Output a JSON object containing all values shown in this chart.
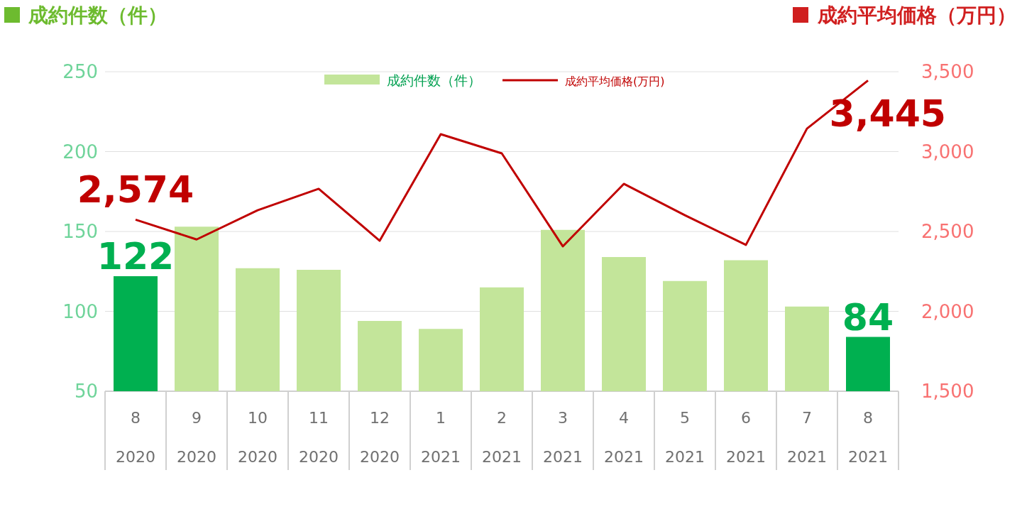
{
  "chart_data": {
    "type": "bar",
    "ylabel": "成約件数（件）",
    "y2label": "成約平均価格（万円）",
    "categories": [
      "8\n2020",
      "9\n2020",
      "10\n2020",
      "11\n2020",
      "12\n2020",
      "1\n2021",
      "2\n2021",
      "3\n2021",
      "4\n2021",
      "5\n2021",
      "6\n2021",
      "7\n2021",
      "8\n2021"
    ],
    "series": [
      {
        "name": "成約件数（件）",
        "color": "#c3e59a",
        "colors": [
          "#00b050",
          "#c3e59a",
          "#c3e59a",
          "#c3e59a",
          "#c3e59a",
          "#c3e59a",
          "#c3e59a",
          "#c3e59a",
          "#c3e59a",
          "#c3e59a",
          "#c3e59a",
          "#c3e59a",
          "#00b050"
        ],
        "values": [
          122,
          153,
          127,
          126,
          94,
          89,
          115,
          151,
          134,
          119,
          132,
          103,
          84
        ],
        "value_labels": [
          "122",
          null,
          null,
          null,
          null,
          null,
          null,
          null,
          null,
          null,
          null,
          null,
          "84"
        ]
      },
      {
        "name": "成約平均価格(万円)",
        "type": "line",
        "axis": "y2",
        "color": "#c00000",
        "values": [
          2574,
          2450,
          2633,
          2767,
          2442,
          3109,
          2989,
          2407,
          2798,
          2602,
          2416,
          3144,
          3445
        ],
        "value_labels": [
          "2,574",
          null,
          null,
          null,
          null,
          null,
          null,
          null,
          null,
          null,
          null,
          null,
          "3,445"
        ]
      }
    ],
    "ylim": [
      50,
      250
    ],
    "yticks": [
      50,
      100,
      150,
      200,
      250
    ],
    "y2lim": [
      1500,
      3500
    ],
    "y2ticks": [
      {
        "value": 1500,
        "label": "1,500"
      },
      {
        "value": 2000,
        "label": "2,000"
      },
      {
        "value": 2500,
        "label": "2,500"
      },
      {
        "value": 3000,
        "label": "3,000"
      },
      {
        "value": 3500,
        "label": "3,500"
      }
    ],
    "grid": "y",
    "legend": "top",
    "marker": "none",
    "line_style": "solid"
  }
}
